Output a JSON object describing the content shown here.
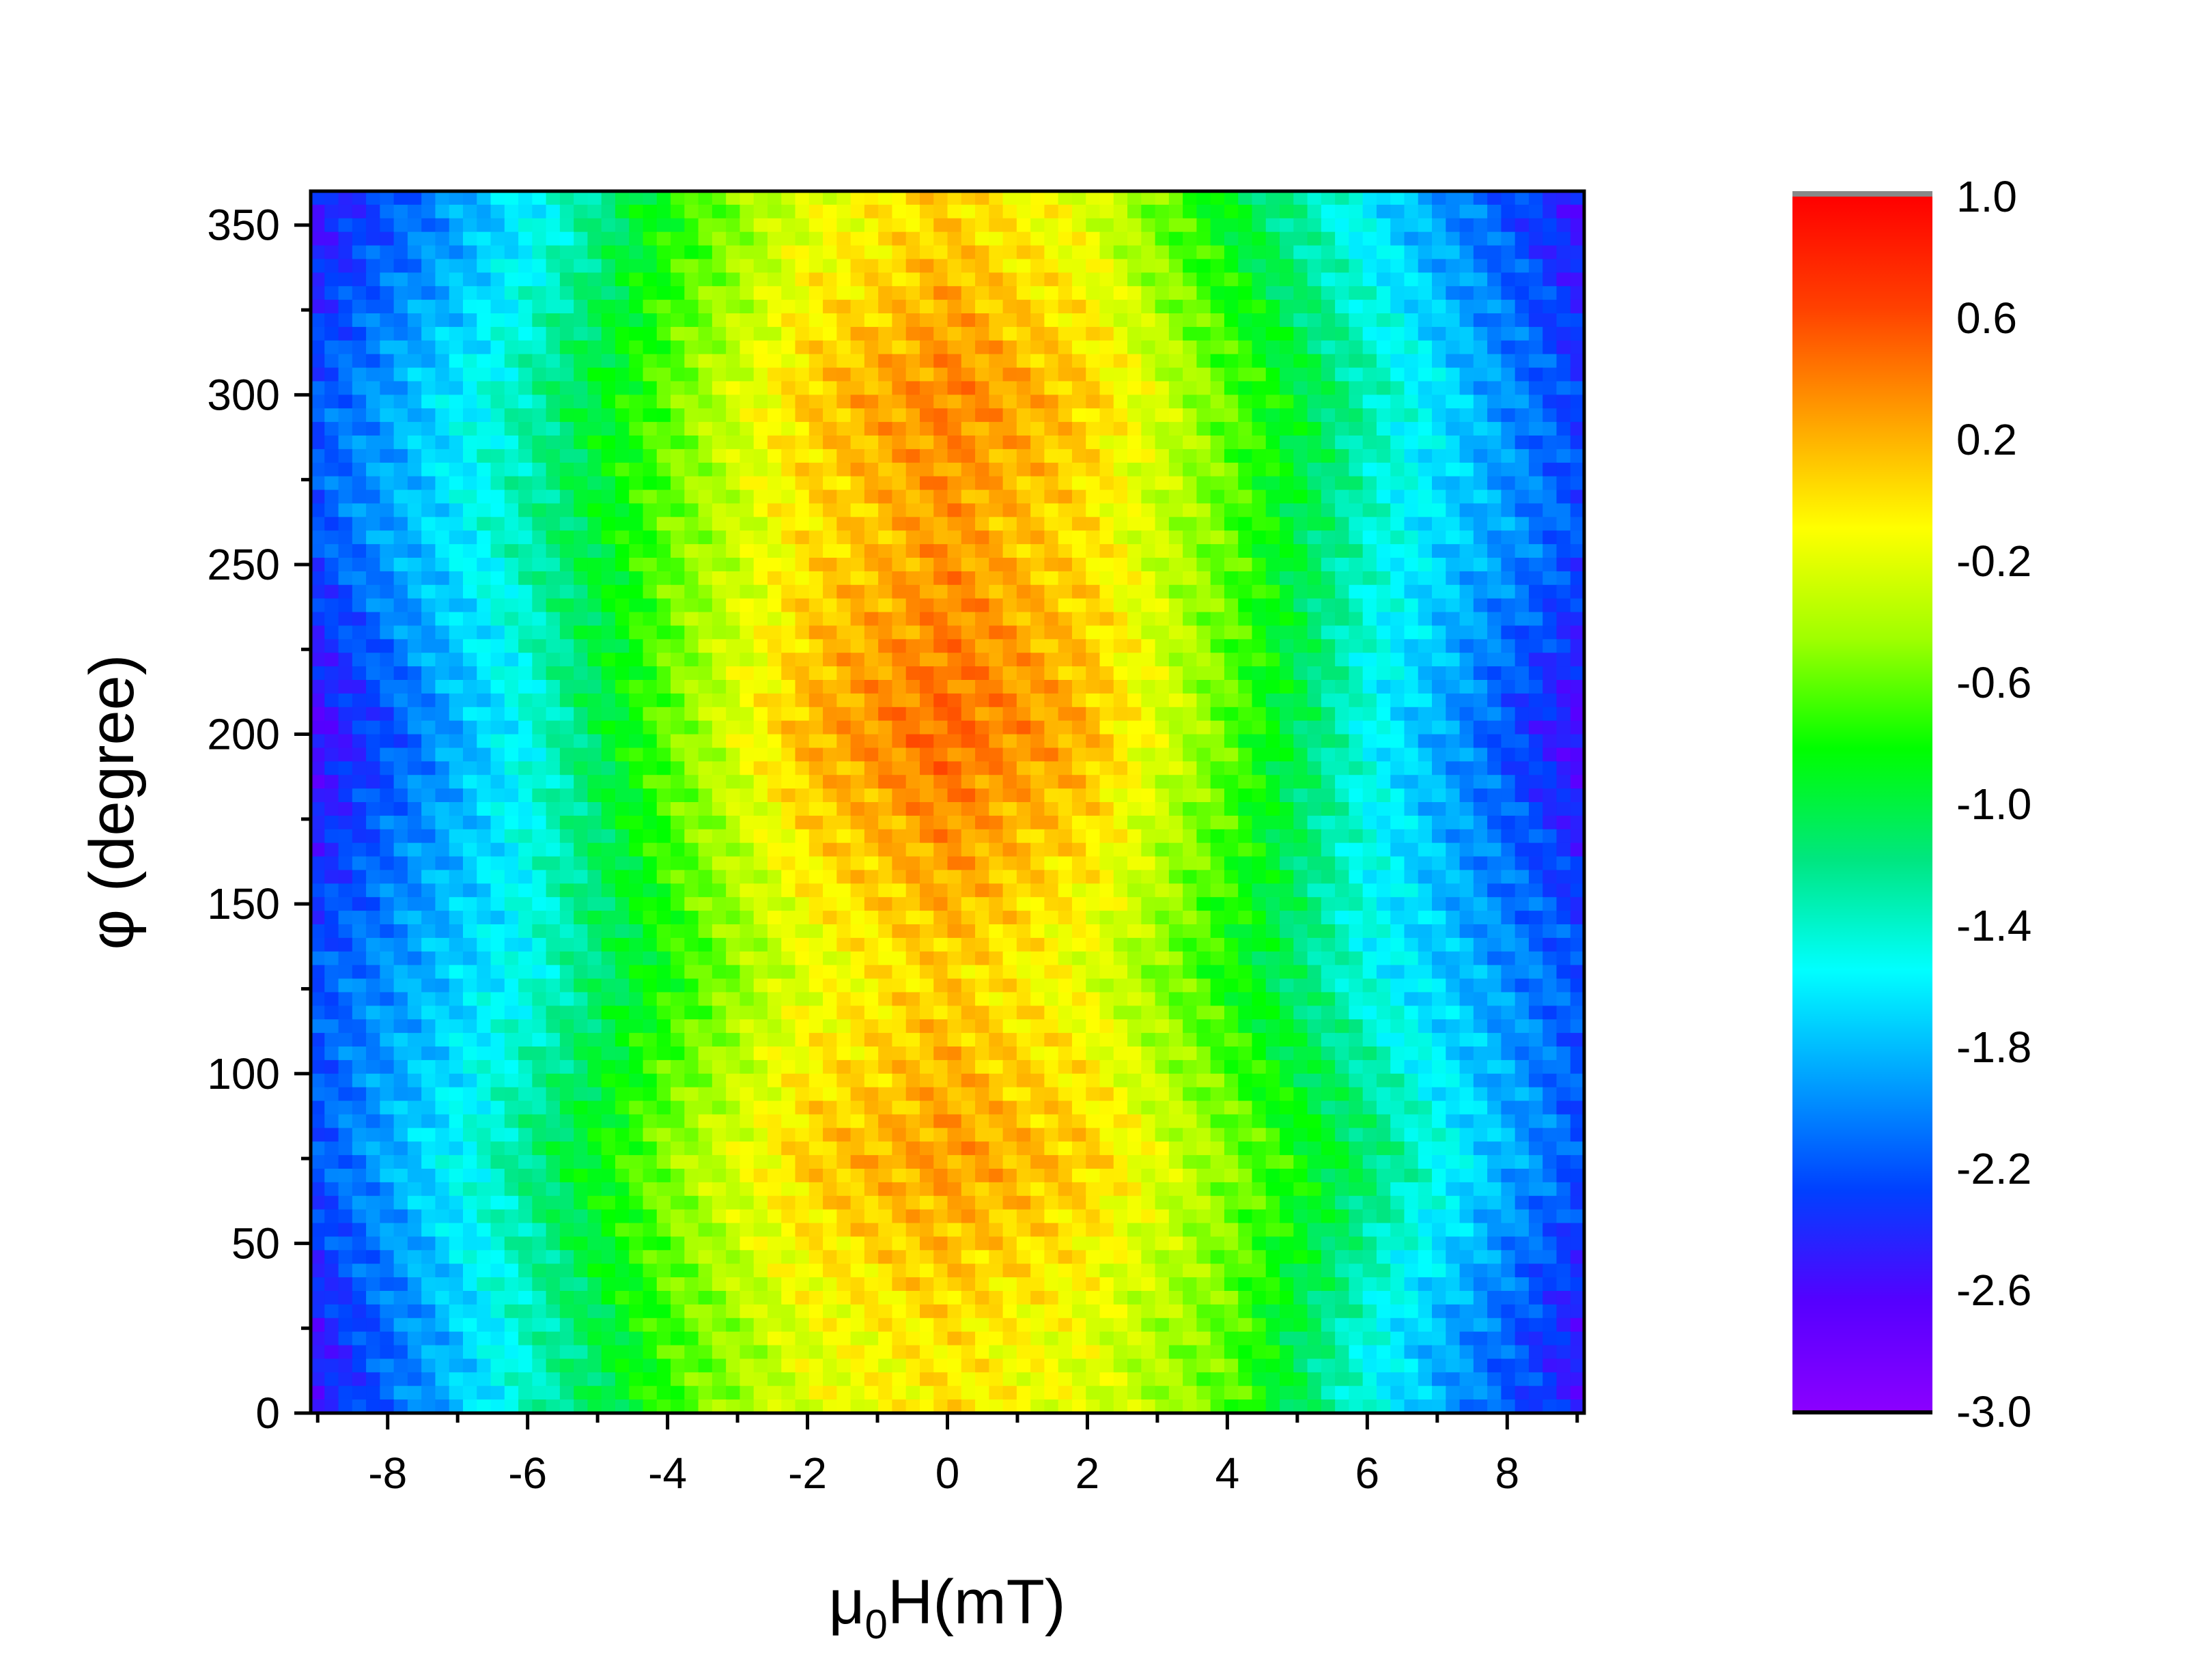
{
  "chart_data": {
    "type": "heatmap",
    "title": "",
    "xlabel": {
      "prefix": "μ",
      "sub": "0",
      "suffix": "H(mT)"
    },
    "ylabel": "φ (degree)",
    "xlim": [
      -9.1,
      9.1
    ],
    "ylim": [
      0,
      360
    ],
    "xticks": [
      -8,
      -6,
      -4,
      -2,
      0,
      2,
      4,
      6,
      8
    ],
    "xtick_labels": [
      "-8",
      "-6",
      "-4",
      "-2",
      "0",
      "2",
      "4",
      "6",
      "8"
    ],
    "yticks": [
      0,
      50,
      100,
      150,
      200,
      250,
      300,
      350
    ],
    "ytick_labels": [
      "0",
      "50",
      "100",
      "150",
      "200",
      "250",
      "300",
      "350"
    ],
    "colorbar": {
      "range": [
        -3.0,
        1.0
      ],
      "ticks": [
        1.0,
        0.6,
        0.2,
        -0.2,
        -0.6,
        -1.0,
        -1.4,
        -1.8,
        -2.2,
        -2.6,
        -3.0
      ],
      "tick_labels": [
        "1.0",
        "0.6",
        "0.2",
        "-0.2",
        "-0.6",
        "-1.0",
        "-1.4",
        "-1.8",
        "-2.2",
        "-2.6",
        "-3.0"
      ],
      "colormap": [
        "#8b00ff",
        "#5500ff",
        "#0040ff",
        "#00a0ff",
        "#00ffff",
        "#00e680",
        "#00ff00",
        "#a0ff00",
        "#ffff00",
        "#ffa000",
        "#ff4000",
        "#ff0000"
      ]
    },
    "grid": false,
    "description_series": [
      {
        "x": [
          -9,
          -6,
          -4,
          -2,
          0,
          2,
          4,
          6,
          9
        ],
        "center_value_by_phi": [
          {
            "phi": 20,
            "values": [
              -2.5,
              -1.4,
              -0.7,
              -0.2,
              0.0,
              -0.2,
              -0.6,
              -1.5,
              -2.5
            ]
          },
          {
            "phi": 75,
            "values": [
              -2.2,
              -1.2,
              -0.5,
              0.1,
              0.3,
              0.1,
              -0.5,
              -1.1,
              -2.2
            ]
          },
          {
            "phi": 130,
            "values": [
              -2.2,
              -1.5,
              -0.8,
              -0.2,
              0.1,
              -0.2,
              -0.8,
              -1.5,
              -2.2
            ]
          },
          {
            "phi": 200,
            "values": [
              -2.6,
              -1.5,
              -0.6,
              0.2,
              0.5,
              0.2,
              -0.6,
              -1.5,
              -2.6
            ]
          },
          {
            "phi": 260,
            "values": [
              -2.2,
              -1.3,
              -0.6,
              0.0,
              0.3,
              0.0,
              -0.6,
              -1.4,
              -2.2
            ]
          },
          {
            "phi": 300,
            "values": [
              -2.2,
              -1.3,
              -0.6,
              0.1,
              0.4,
              0.1,
              -0.6,
              -1.3,
              -2.3
            ]
          },
          {
            "phi": 350,
            "values": [
              -2.5,
              -1.6,
              -0.8,
              -0.2,
              0.1,
              -0.2,
              -0.9,
              -1.6,
              -2.5
            ]
          }
        ]
      }
    ]
  }
}
